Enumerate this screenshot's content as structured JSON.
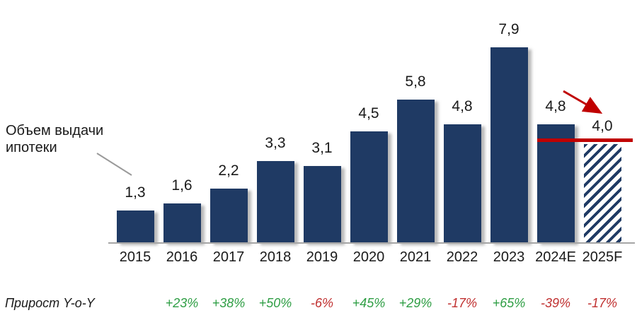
{
  "chart_data": {
    "type": "bar",
    "title": "Объем выдачи ипотеки",
    "categories": [
      "2015",
      "2016",
      "2017",
      "2018",
      "2019",
      "2020",
      "2021",
      "2022",
      "2023",
      "2024E",
      "2025F"
    ],
    "values": [
      1.3,
      1.6,
      2.2,
      3.3,
      3.1,
      4.5,
      5.8,
      4.8,
      7.9,
      4.8,
      4.0
    ],
    "value_labels": [
      "1,3",
      "1,6",
      "2,2",
      "3,3",
      "3,1",
      "4,5",
      "5,8",
      "4,8",
      "7,9",
      "4,8",
      "4,0"
    ],
    "ylim": [
      0,
      8.5
    ],
    "grid": false,
    "legend_position": "none",
    "growth_row_label": "Прирост Y-o-Y",
    "growth_labels": [
      "+23%",
      "+38%",
      "+50%",
      "-6%",
      "+45%",
      "+29%",
      "-17%",
      "+65%",
      "-39%",
      "-17%"
    ],
    "forecast_index": 10,
    "annotations": {
      "target_line_value": "4,0",
      "trend_arrow": "down"
    },
    "colors": {
      "bar": "#1f3a64",
      "positive": "#2e9e44",
      "negative": "#c03030",
      "target_line": "#c00000",
      "axis": "#a6a6a6",
      "leader_line": "#9a9a9a",
      "text": "#1a1a1a"
    }
  }
}
